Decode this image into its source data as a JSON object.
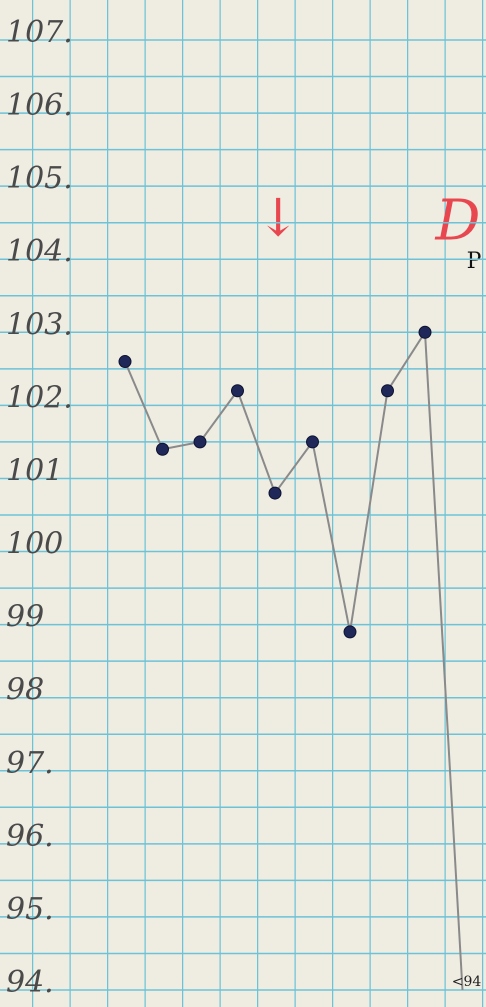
{
  "chart_data": {
    "type": "line",
    "categories": [
      null,
      null,
      null,
      null,
      null,
      null,
      null,
      null,
      null,
      null
    ],
    "series": [
      {
        "color": "#8a8a8a",
        "values": [
          102.6,
          101.4,
          101.5,
          102.2,
          100.8,
          101.5,
          98.9,
          102.2,
          103.0,
          94
        ],
        "value_labels": [
          null,
          null,
          null,
          null,
          null,
          null,
          null,
          null,
          null,
          "<94"
        ]
      }
    ],
    "ylim": [
      94,
      107
    ],
    "yticks": [
      {
        "value": 94,
        "label": "94."
      },
      {
        "value": 95,
        "label": "95."
      },
      {
        "value": 96,
        "label": "96."
      },
      {
        "value": 97,
        "label": "97."
      },
      98,
      99,
      100,
      101,
      {
        "value": 102,
        "label": "102."
      },
      {
        "value": 103,
        "label": "103."
      },
      {
        "value": 104,
        "label": "104."
      },
      {
        "value": 105,
        "label": "105."
      },
      {
        "value": 106,
        "label": "106."
      },
      {
        "value": 107,
        "label": "107."
      }
    ],
    "grid": true,
    "annotations": [
      "↓",
      "D",
      "P"
    ]
  }
}
